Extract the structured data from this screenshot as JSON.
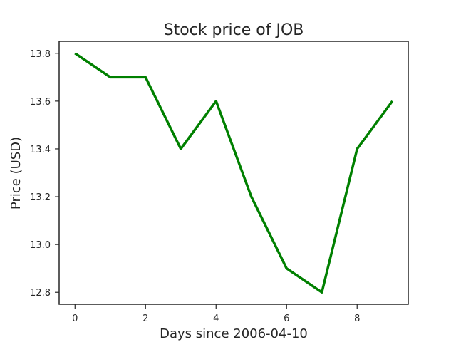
{
  "chart_data": {
    "type": "line",
    "title": "Stock price of JOB",
    "xlabel": "Days since 2006-04-10",
    "ylabel": "Price (USD)",
    "x": [
      0,
      1,
      2,
      3,
      4,
      5,
      6,
      7,
      8,
      9
    ],
    "series": [
      {
        "values": [
          13.8,
          13.7,
          13.7,
          13.4,
          13.6,
          13.2,
          12.9,
          12.8,
          13.4,
          13.6
        ],
        "color": "#008000"
      }
    ],
    "xlim": [
      -0.45,
      9.45
    ],
    "ylim": [
      12.75,
      13.85
    ],
    "xticks": [
      0,
      2,
      4,
      6,
      8
    ],
    "xtick_labels": [
      "0",
      "2",
      "4",
      "6",
      "8"
    ],
    "yticks": [
      12.8,
      13.0,
      13.2,
      13.4,
      13.6,
      13.8
    ],
    "ytick_labels": [
      "12.8",
      "13.0",
      "13.2",
      "13.4",
      "13.6",
      "13.8"
    ],
    "grid": false,
    "legend": false
  }
}
